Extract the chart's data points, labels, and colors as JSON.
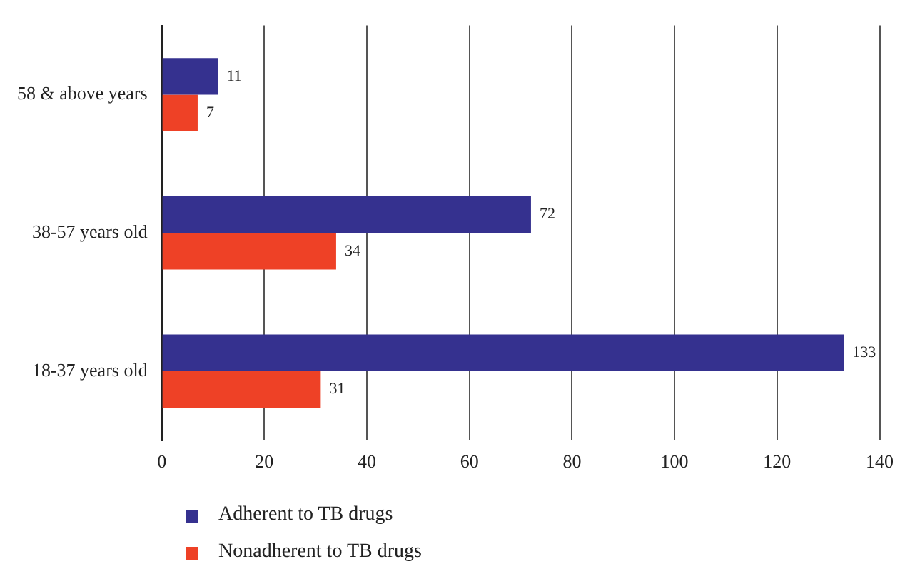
{
  "chart_data": {
    "type": "bar",
    "orientation": "horizontal",
    "categories": [
      "58 & above years",
      "38-57 years old",
      "18-37 years old"
    ],
    "series": [
      {
        "name": "Adherent to TB drugs",
        "color": "#35318f",
        "values": [
          11,
          72,
          133
        ]
      },
      {
        "name": "Nonadherent to TB drugs",
        "color": "#ee4126",
        "values": [
          7,
          34,
          31
        ]
      }
    ],
    "xlim": [
      0,
      140
    ],
    "xticks": [
      0,
      20,
      40,
      60,
      80,
      100,
      120,
      140
    ],
    "grid": "x",
    "legend": "bottom left",
    "data_labels": true
  }
}
